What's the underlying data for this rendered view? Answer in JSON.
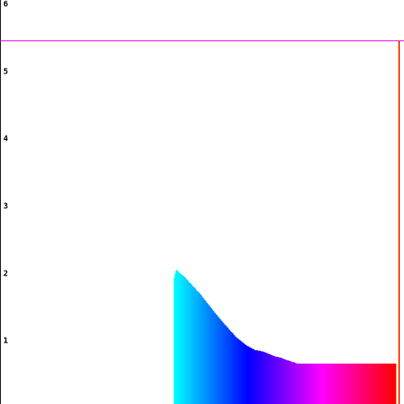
{
  "chart_data": {
    "type": "bar",
    "title": "",
    "xlabel": "",
    "ylabel": "",
    "ylim": [
      0,
      6
    ],
    "y_ticks": [
      "1",
      "2",
      "3",
      "4",
      "5",
      "6"
    ],
    "grid": false,
    "reference_line": {
      "value": 5.4,
      "color": "#e000e0"
    },
    "marker_line": {
      "color": "#ff4000"
    },
    "bar_colors": [
      "#00ffff",
      "#0000ff",
      "#ff00ff",
      "#ff0000"
    ],
    "values": [
      1.87,
      1.93,
      1.98,
      1.99,
      1.98,
      1.96,
      1.95,
      1.94,
      1.93,
      1.92,
      1.91,
      1.9,
      1.89,
      1.88,
      1.86,
      1.85,
      1.84,
      1.82,
      1.8,
      1.8,
      1.78,
      1.77,
      1.75,
      1.74,
      1.73,
      1.72,
      1.7,
      1.68,
      1.67,
      1.66,
      1.65,
      1.63,
      1.62,
      1.6,
      1.58,
      1.57,
      1.55,
      1.54,
      1.52,
      1.5,
      1.49,
      1.47,
      1.46,
      1.44,
      1.43,
      1.41,
      1.39,
      1.38,
      1.36,
      1.35,
      1.33,
      1.32,
      1.3,
      1.29,
      1.27,
      1.26,
      1.24,
      1.23,
      1.21,
      1.2,
      1.18,
      1.17,
      1.16,
      1.14,
      1.13,
      1.11,
      1.1,
      1.08,
      1.07,
      1.06,
      1.05,
      1.03,
      1.02,
      1.0,
      0.99,
      0.98,
      0.97,
      0.96,
      0.95,
      0.94,
      0.93,
      0.92,
      0.91,
      0.9,
      0.89,
      0.88,
      0.87,
      0.86,
      0.86,
      0.85,
      0.84,
      0.84,
      0.83,
      0.82,
      0.82,
      0.81,
      0.8,
      0.8,
      0.8,
      0.8,
      0.79,
      0.79,
      0.79,
      0.79,
      0.78,
      0.78,
      0.78,
      0.77,
      0.77,
      0.76,
      0.76,
      0.75,
      0.75,
      0.74,
      0.74,
      0.73,
      0.73,
      0.72,
      0.72,
      0.71,
      0.71,
      0.7,
      0.7,
      0.7,
      0.7,
      0.69,
      0.69,
      0.69,
      0.68,
      0.68,
      0.67,
      0.67,
      0.66,
      0.66,
      0.65,
      0.65,
      0.65,
      0.64,
      0.64,
      0.63,
      0.63,
      0.62,
      0.62,
      0.62,
      0.61,
      0.61,
      0.6,
      0.6,
      0.6,
      0.6,
      0.6,
      0.6,
      0.6,
      0.6,
      0.6,
      0.6,
      0.6,
      0.6,
      0.6,
      0.6,
      0.6,
      0.6,
      0.6,
      0.6,
      0.6,
      0.6,
      0.6,
      0.6,
      0.6,
      0.6,
      0.6,
      0.6,
      0.6,
      0.6,
      0.6,
      0.6,
      0.6,
      0.6,
      0.6,
      0.6,
      0.6,
      0.6,
      0.6,
      0.6,
      0.6,
      0.6,
      0.6,
      0.6,
      0.6,
      0.6,
      0.6,
      0.6,
      0.6,
      0.6,
      0.6,
      0.6,
      0.6,
      0.6,
      0.6,
      0.6,
      0.6,
      0.6,
      0.6,
      0.6,
      0.6,
      0.6,
      0.6,
      0.6,
      0.6,
      0.6,
      0.6,
      0.6,
      0.6,
      0.6,
      0.6,
      0.6,
      0.6,
      0.6,
      0.6,
      0.6,
      0.6,
      0.6,
      0.6,
      0.6,
      0.6,
      0.6,
      0.6,
      0.6,
      0.6,
      0.6,
      0.6,
      0.6,
      0.6,
      0.6,
      0.6,
      0.6,
      0.6,
      0.6,
      0.6,
      0.6,
      0.6,
      0.6,
      0.6,
      0.6,
      0.6,
      0.6,
      0.6,
      0.6,
      0.6,
      0.6,
      0.6,
      0.6,
      0.6,
      0.6,
      0.6,
      0.6,
      0.6,
      0.6,
      0.6,
      0.6,
      0.6,
      0.6,
      0.6,
      0.6,
      0.6
    ],
    "marker_value": 5.4
  }
}
